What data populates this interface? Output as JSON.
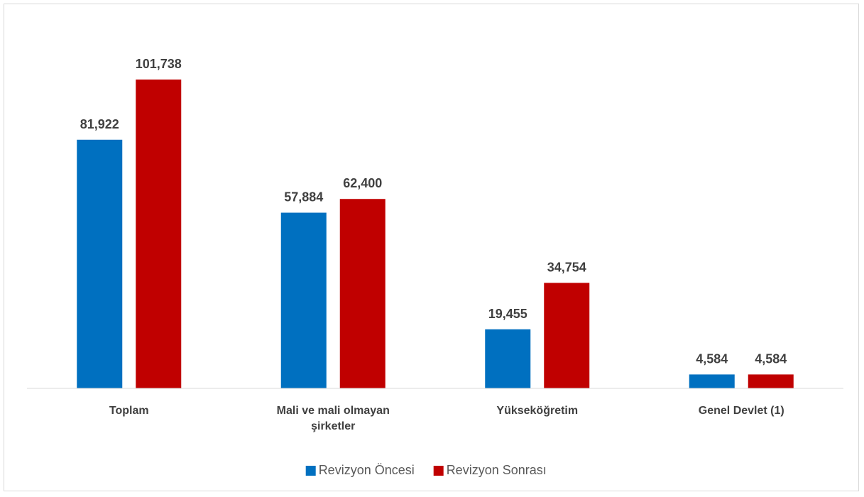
{
  "chart_data": {
    "type": "bar",
    "categories": [
      "Toplam",
      "Mali ve mali olmayan şirketler",
      "Yükseköğretim",
      "Genel Devlet (1)"
    ],
    "series": [
      {
        "name": "Revizyon Öncesi",
        "color": "#0070c0",
        "values": [
          81922,
          57884,
          19455,
          4584
        ],
        "value_labels": [
          "81,922",
          "57,884",
          "19,455",
          "4,584"
        ]
      },
      {
        "name": "Revizyon Sonrası",
        "color": "#c00000",
        "values": [
          101738,
          62400,
          34754,
          4584
        ],
        "value_labels": [
          "101,738",
          "62,400",
          "34,754",
          "4,584"
        ]
      }
    ],
    "ylim": [
      0,
      120000
    ],
    "legend": "bottom"
  }
}
